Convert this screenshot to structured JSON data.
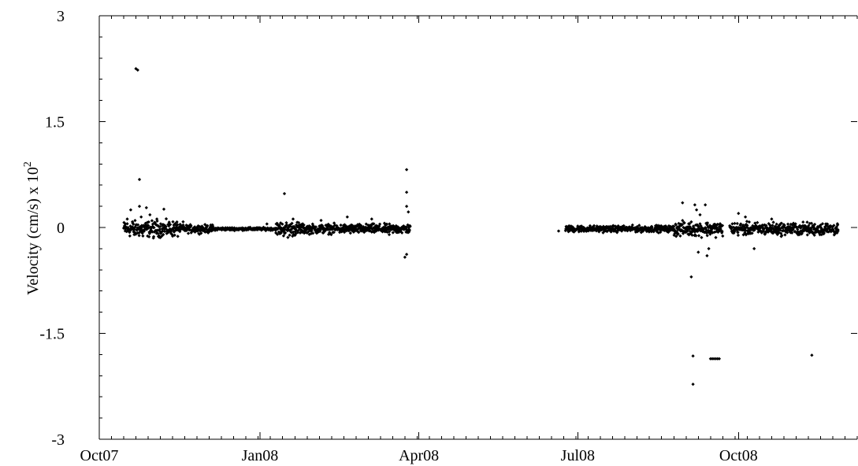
{
  "chart_data": {
    "type": "scatter",
    "title": "",
    "xlabel": "",
    "ylabel": "Velocity (cm/s) x 10",
    "ylabel_exponent": "2",
    "xlim": [
      "2007-10-01",
      "2008-12-08"
    ],
    "ylim": [
      -3,
      3
    ],
    "y_ticks": [
      {
        "value": 3,
        "label": "3"
      },
      {
        "value": 1.5,
        "label": "1.5"
      },
      {
        "value": 0,
        "label": "0"
      },
      {
        "value": -1.5,
        "label": "-1.5"
      },
      {
        "value": -3,
        "label": "-3"
      }
    ],
    "x_ticks": [
      {
        "value": "2007-10-01",
        "label": "Oct07"
      },
      {
        "value": "2008-01-01",
        "label": "Jan08"
      },
      {
        "value": "2008-04-01",
        "label": "Apr08"
      },
      {
        "value": "2008-07-01",
        "label": "Jul08"
      },
      {
        "value": "2008-10-01",
        "label": "Oct08"
      }
    ],
    "grid": false,
    "series": [
      {
        "marker_color": "#000000",
        "points": [
          {
            "x": "2007-10-16",
            "y": 0.05
          },
          {
            "x": "2007-10-17",
            "y": 0.12
          },
          {
            "x": "2007-10-18",
            "y": -0.05
          },
          {
            "x": "2007-10-19",
            "y": 0.25
          },
          {
            "x": "2007-10-20",
            "y": 0.08
          },
          {
            "x": "2007-10-21",
            "y": -0.1
          },
          {
            "x": "2007-10-22",
            "y": 2.25
          },
          {
            "x": "2007-10-23",
            "y": 2.23
          },
          {
            "x": "2007-10-24",
            "y": 0.68
          },
          {
            "x": "2007-10-24",
            "y": 0.3
          },
          {
            "x": "2007-10-25",
            "y": 0.15
          },
          {
            "x": "2007-10-26",
            "y": -0.12
          },
          {
            "x": "2007-10-28",
            "y": 0.28
          },
          {
            "x": "2007-10-30",
            "y": 0.18
          },
          {
            "x": "2007-11-01",
            "y": -0.15
          },
          {
            "x": "2007-11-03",
            "y": 0.12
          },
          {
            "x": "2007-11-05",
            "y": -0.08
          },
          {
            "x": "2007-11-07",
            "y": 0.26
          },
          {
            "x": "2007-11-10",
            "y": 0.05
          },
          {
            "x": "2007-11-13",
            "y": -0.05
          },
          {
            "x": "2007-11-18",
            "y": 0.08
          },
          {
            "x": "2007-11-25",
            "y": -0.04
          },
          {
            "x": "2007-12-05",
            "y": 0.02
          },
          {
            "x": "2007-12-20",
            "y": -0.02
          },
          {
            "x": "2008-01-05",
            "y": 0.05
          },
          {
            "x": "2008-01-15",
            "y": 0.48
          },
          {
            "x": "2008-01-17",
            "y": -0.14
          },
          {
            "x": "2008-01-20",
            "y": 0.12
          },
          {
            "x": "2008-02-05",
            "y": 0.1
          },
          {
            "x": "2008-02-20",
            "y": 0.15
          },
          {
            "x": "2008-03-05",
            "y": 0.12
          },
          {
            "x": "2008-03-15",
            "y": -0.1
          },
          {
            "x": "2008-03-25",
            "y": 0.82
          },
          {
            "x": "2008-03-25",
            "y": 0.5
          },
          {
            "x": "2008-03-25",
            "y": 0.3
          },
          {
            "x": "2008-03-25",
            "y": -0.38
          },
          {
            "x": "2008-03-24",
            "y": -0.42
          },
          {
            "x": "2008-03-26",
            "y": 0.22
          },
          {
            "x": "2008-06-20",
            "y": -0.05
          },
          {
            "x": "2008-07-01",
            "y": 0.02
          },
          {
            "x": "2008-07-20",
            "y": -0.06
          },
          {
            "x": "2008-08-15",
            "y": 0.03
          },
          {
            "x": "2008-08-30",
            "y": 0.35
          },
          {
            "x": "2008-09-04",
            "y": -0.7
          },
          {
            "x": "2008-09-05",
            "y": -1.82
          },
          {
            "x": "2008-09-05",
            "y": -2.22
          },
          {
            "x": "2008-09-06",
            "y": 0.32
          },
          {
            "x": "2008-09-07",
            "y": 0.25
          },
          {
            "x": "2008-09-08",
            "y": -0.35
          },
          {
            "x": "2008-09-09",
            "y": 0.18
          },
          {
            "x": "2008-09-12",
            "y": 0.32
          },
          {
            "x": "2008-09-13",
            "y": -0.4
          },
          {
            "x": "2008-09-14",
            "y": -0.3
          },
          {
            "x": "2008-09-15",
            "y": -1.86
          },
          {
            "x": "2008-09-16",
            "y": -1.86
          },
          {
            "x": "2008-09-17",
            "y": -1.86
          },
          {
            "x": "2008-09-18",
            "y": -1.86
          },
          {
            "x": "2008-09-19",
            "y": -1.86
          },
          {
            "x": "2008-09-20",
            "y": -1.86
          },
          {
            "x": "2008-10-01",
            "y": 0.2
          },
          {
            "x": "2008-10-05",
            "y": 0.15
          },
          {
            "x": "2008-10-10",
            "y": -0.3
          },
          {
            "x": "2008-10-20",
            "y": 0.12
          },
          {
            "x": "2008-11-05",
            "y": -0.1
          },
          {
            "x": "2008-11-12",
            "y": -1.81
          },
          {
            "x": "2008-11-20",
            "y": 0.05
          },
          {
            "x": "2008-11-27",
            "y": -0.05
          }
        ],
        "dense_segments": [
          {
            "start": "2007-10-15",
            "end": "2007-11-15",
            "spread": 0.1
          },
          {
            "start": "2007-11-15",
            "end": "2007-12-05",
            "spread": 0.05
          },
          {
            "start": "2007-12-05",
            "end": "2008-01-10",
            "spread": 0.018
          },
          {
            "start": "2008-01-10",
            "end": "2008-01-25",
            "spread": 0.09
          },
          {
            "start": "2008-01-25",
            "end": "2008-03-27",
            "spread": 0.06
          },
          {
            "start": "2008-06-24",
            "end": "2008-08-25",
            "spread": 0.04
          },
          {
            "start": "2008-08-25",
            "end": "2008-09-22",
            "spread": 0.09
          },
          {
            "start": "2008-09-26",
            "end": "2008-11-27",
            "spread": 0.08
          }
        ]
      }
    ]
  }
}
